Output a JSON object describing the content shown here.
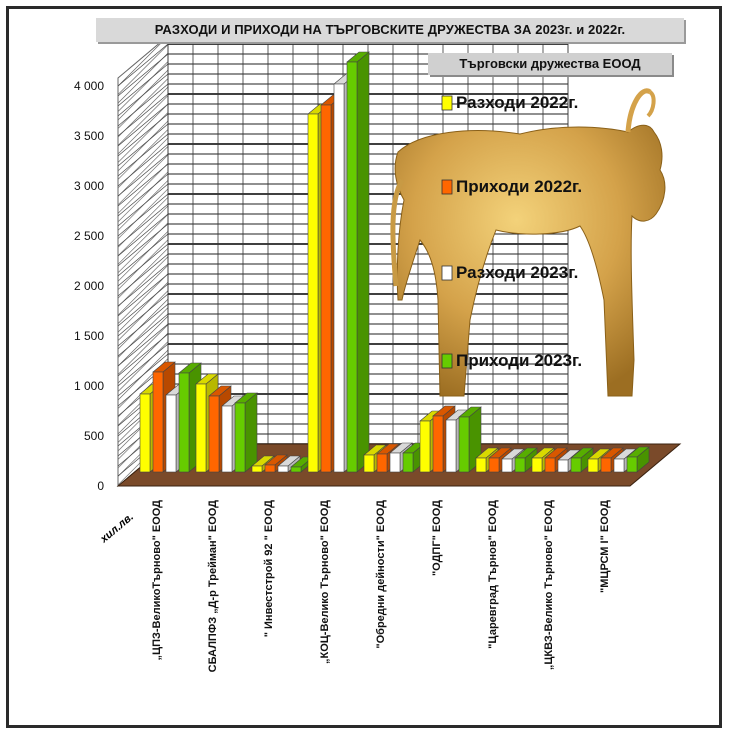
{
  "chart_data": {
    "type": "bar",
    "title": "РАЗХОДИ И ПРИХОДИ НА ТЪРГОВСКИТЕ ДРУЖЕСТВА ЗА  2023г. и 2022г.",
    "ylabel": "хил.лв.",
    "legend_title": "Търговски дружества ЕООД",
    "legend_position": "right",
    "ylim": [
      0,
      4000
    ],
    "yticks": [
      "0",
      "500",
      "1 000",
      "1 500",
      "2 000",
      "2 500",
      "3 000",
      "3 500",
      "4 000"
    ],
    "grid": true,
    "categories": [
      "„ЦПЗ-ВеликоТърново\" ЕООД",
      "СБАЛПФЗ „Д-р Трейман\" ЕООД",
      "\" Инвестстрой 92 \" ЕООД",
      "„КОЦ-Велико Търново\" ЕООД",
      "\"Обредни дейности\" ЕООД",
      "\"ОДПГ\" ЕООД",
      "\"Царевград Търнов\" ЕООД",
      "„ЦКВЗ-Велико Търново\" ЕООД",
      "\"МЦРСМ I\" ЕООД"
    ],
    "series": [
      {
        "name": "Разходи 2022г.",
        "color": "#ffff00",
        "values": [
          780,
          880,
          60,
          3580,
          170,
          510,
          140,
          140,
          130
        ]
      },
      {
        "name": "Приходи 2022г.",
        "color": "#ff6600",
        "values": [
          1000,
          760,
          70,
          3670,
          180,
          560,
          140,
          140,
          140
        ]
      },
      {
        "name": "Разходи 2023г.",
        "color": "#ffffff",
        "values": [
          770,
          660,
          60,
          3880,
          190,
          520,
          130,
          120,
          130
        ]
      },
      {
        "name": "Приходи 2023г.",
        "color": "#66cc00",
        "values": [
          990,
          690,
          50,
          4100,
          190,
          550,
          140,
          140,
          150
        ]
      }
    ]
  }
}
